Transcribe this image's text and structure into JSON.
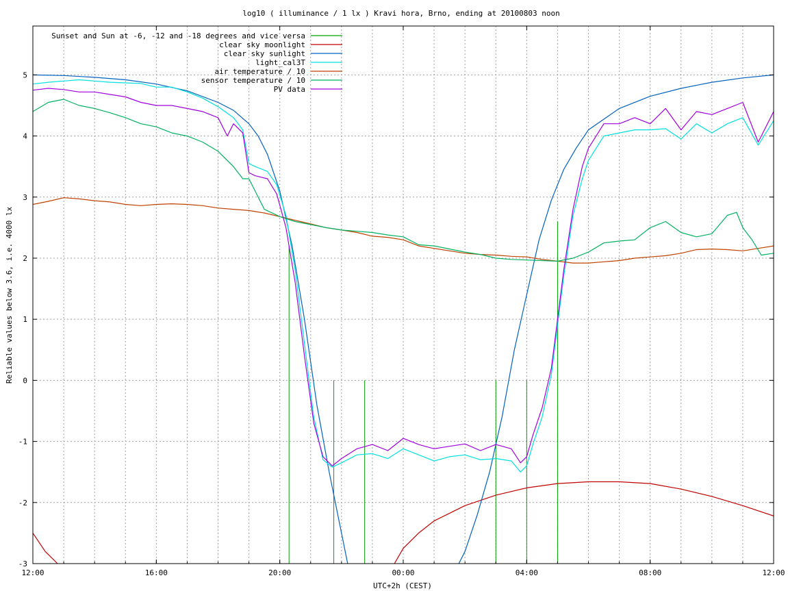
{
  "chart_data": {
    "type": "line",
    "title": "log10 ( illuminance / 1 lx ) Kravi hora, Brno, ending at 20100803 noon",
    "xlabel": "UTC+2h (CEST)",
    "ylabel": "Reliable values below 3.6, i.e. 4000 lx",
    "xlim": [
      0,
      24
    ],
    "ylim": [
      -3,
      5.8
    ],
    "grid": true,
    "legend_position": "top-left",
    "x_ticks": [
      {
        "at": 0,
        "label": "12:00"
      },
      {
        "at": 4,
        "label": "16:00"
      },
      {
        "at": 8,
        "label": "20:00"
      },
      {
        "at": 12,
        "label": "00:00"
      },
      {
        "at": 16,
        "label": "04:00"
      },
      {
        "at": 20,
        "label": "08:00"
      },
      {
        "at": 24,
        "label": "12:00"
      }
    ],
    "x_minor_step": 1,
    "y_ticks": [
      {
        "at": -3,
        "label": "-3"
      },
      {
        "at": -2,
        "label": "-2"
      },
      {
        "at": -1,
        "label": "-1"
      },
      {
        "at": 0,
        "label": "0"
      },
      {
        "at": 1,
        "label": "1"
      },
      {
        "at": 2,
        "label": "2"
      },
      {
        "at": 3,
        "label": "3"
      },
      {
        "at": 4,
        "label": "4"
      },
      {
        "at": 5,
        "label": "5"
      }
    ],
    "series": [
      {
        "name": "Sunset and Sun at -6, -12 and -18 degrees and vice versa",
        "color": "#00a000",
        "kind": "impulses",
        "x": [
          8.3,
          9.75,
          10.75,
          15.0,
          16.0,
          17.0
        ],
        "y": [
          2.2,
          0.0,
          0.0,
          0.0,
          0.0,
          2.6
        ]
      },
      {
        "name": "clear sky moonlight",
        "color": "#c00000",
        "kind": "line",
        "x": [
          0,
          0.4,
          0.8,
          1.2,
          11.6,
          12.0,
          12.5,
          13.0,
          14.0,
          15.0,
          16.0,
          17.0,
          18.0,
          19.0,
          20.0,
          21.0,
          22.0,
          23.0,
          24.0
        ],
        "y": [
          -2.5,
          -2.8,
          -3.0,
          -3.1,
          -3.1,
          -2.75,
          -2.5,
          -2.3,
          -2.05,
          -1.88,
          -1.76,
          -1.69,
          -1.66,
          -1.66,
          -1.69,
          -1.78,
          -1.9,
          -2.05,
          -2.22
        ]
      },
      {
        "name": "clear sky sunlight",
        "color": "#0060c0",
        "kind": "line",
        "x": [
          0,
          1,
          2,
          3,
          4,
          5,
          6,
          6.5,
          7.0,
          7.3,
          7.6,
          8.0,
          8.4,
          8.8,
          9.2,
          9.6,
          10.0,
          10.2,
          10.4,
          13.6,
          13.8,
          14.0,
          14.4,
          14.8,
          15.2,
          15.6,
          16.0,
          16.4,
          16.8,
          17.2,
          17.6,
          18.0,
          19.0,
          20.0,
          21.0,
          22.0,
          23.0,
          24.0
        ],
        "y": [
          5.0,
          4.99,
          4.96,
          4.92,
          4.85,
          4.74,
          4.55,
          4.42,
          4.2,
          4.0,
          3.7,
          3.1,
          2.2,
          1.0,
          -0.4,
          -1.5,
          -2.5,
          -3.0,
          -3.2,
          -3.2,
          -3.0,
          -2.8,
          -2.2,
          -1.5,
          -0.6,
          0.5,
          1.4,
          2.3,
          2.95,
          3.45,
          3.8,
          4.1,
          4.45,
          4.65,
          4.78,
          4.88,
          4.95,
          5.0
        ]
      },
      {
        "name": "light_cal3T",
        "color": "#00e0e0",
        "kind": "line",
        "x": [
          0,
          0.5,
          1,
          1.5,
          2,
          2.5,
          3,
          3.5,
          4,
          4.5,
          5,
          5.5,
          6,
          6.5,
          6.8,
          7.0,
          7.2,
          7.6,
          7.9,
          8.2,
          8.5,
          8.8,
          9.1,
          9.4,
          9.7,
          10.0,
          10.5,
          11,
          11.5,
          12,
          12.5,
          13,
          13.5,
          14,
          14.5,
          15,
          15.5,
          15.8,
          16.0,
          16.2,
          16.5,
          16.8,
          17.0,
          17.2,
          17.5,
          17.8,
          18.0,
          18.5,
          19,
          19.5,
          20,
          20.5,
          21,
          21.5,
          22,
          22.5,
          23,
          23.5,
          24
        ],
        "y": [
          4.85,
          4.88,
          4.9,
          4.92,
          4.9,
          4.88,
          4.87,
          4.86,
          4.8,
          4.8,
          4.72,
          4.62,
          4.48,
          4.3,
          4.1,
          3.55,
          3.5,
          3.42,
          3.2,
          2.7,
          1.8,
          0.6,
          -0.6,
          -1.3,
          -1.42,
          -1.35,
          -1.22,
          -1.2,
          -1.28,
          -1.12,
          -1.22,
          -1.32,
          -1.25,
          -1.22,
          -1.3,
          -1.28,
          -1.32,
          -1.5,
          -1.4,
          -1.05,
          -0.6,
          0.1,
          0.9,
          1.7,
          2.7,
          3.3,
          3.6,
          4.0,
          4.05,
          4.1,
          4.1,
          4.12,
          3.95,
          4.2,
          4.05,
          4.2,
          4.3,
          3.85,
          4.25
        ]
      },
      {
        "name": "air temperature / 10",
        "color": "#c04000",
        "kind": "line",
        "x": [
          0,
          0.5,
          1,
          1.5,
          2,
          2.5,
          3,
          3.5,
          4,
          4.5,
          5,
          5.5,
          6,
          6.5,
          7,
          7.5,
          8,
          8.5,
          9,
          9.5,
          10,
          10.5,
          11,
          11.5,
          12,
          12.5,
          13,
          13.5,
          14,
          14.5,
          15,
          15.5,
          16,
          16.5,
          17,
          17.5,
          18,
          18.5,
          19,
          19.5,
          20,
          20.5,
          21,
          21.5,
          22,
          22.5,
          23,
          23.5,
          24
        ],
        "y": [
          2.88,
          2.93,
          2.99,
          2.97,
          2.94,
          2.92,
          2.88,
          2.86,
          2.88,
          2.89,
          2.88,
          2.86,
          2.82,
          2.8,
          2.78,
          2.74,
          2.68,
          2.62,
          2.56,
          2.5,
          2.46,
          2.42,
          2.36,
          2.34,
          2.3,
          2.2,
          2.16,
          2.12,
          2.08,
          2.06,
          2.05,
          2.03,
          2.02,
          1.98,
          1.95,
          1.92,
          1.92,
          1.94,
          1.96,
          2.0,
          2.02,
          2.04,
          2.08,
          2.14,
          2.15,
          2.14,
          2.12,
          2.16,
          2.2
        ]
      },
      {
        "name": "sensor temperature / 10",
        "color": "#00b060",
        "kind": "line",
        "x": [
          0,
          0.5,
          1,
          1.5,
          2,
          2.5,
          3,
          3.5,
          4,
          4.5,
          5,
          5.5,
          6,
          6.5,
          6.8,
          7.0,
          7.2,
          7.5,
          8,
          8.5,
          9,
          9.5,
          10,
          10.5,
          11,
          11.5,
          12,
          12.5,
          13,
          13.5,
          14,
          14.5,
          15,
          15.5,
          16,
          16.5,
          17,
          17.5,
          18,
          18.5,
          19,
          19.5,
          20,
          20.5,
          21,
          21.5,
          22,
          22.5,
          22.8,
          23,
          23.3,
          23.6,
          24
        ],
        "y": [
          4.4,
          4.55,
          4.6,
          4.5,
          4.45,
          4.38,
          4.3,
          4.2,
          4.15,
          4.05,
          4.0,
          3.9,
          3.75,
          3.5,
          3.3,
          3.3,
          3.1,
          2.8,
          2.68,
          2.6,
          2.55,
          2.5,
          2.46,
          2.44,
          2.42,
          2.38,
          2.35,
          2.22,
          2.2,
          2.15,
          2.1,
          2.06,
          2.0,
          1.98,
          1.97,
          1.96,
          1.95,
          2.0,
          2.1,
          2.25,
          2.28,
          2.3,
          2.5,
          2.6,
          2.42,
          2.35,
          2.4,
          2.7,
          2.75,
          2.5,
          2.3,
          2.05,
          2.08
        ]
      },
      {
        "name": "PV data",
        "color": "#a000e0",
        "kind": "line",
        "x": [
          0,
          0.5,
          1,
          1.5,
          2,
          2.5,
          3,
          3.5,
          4,
          4.5,
          5,
          5.5,
          6,
          6.3,
          6.5,
          6.8,
          7.0,
          7.2,
          7.6,
          7.9,
          8.2,
          8.5,
          8.8,
          9.1,
          9.4,
          9.7,
          10.0,
          10.5,
          11,
          11.5,
          12,
          12.5,
          13,
          13.5,
          14,
          14.5,
          15,
          15.5,
          15.8,
          16.0,
          16.2,
          16.5,
          16.8,
          17.0,
          17.2,
          17.5,
          17.8,
          18.0,
          18.5,
          19,
          19.5,
          20,
          20.5,
          21,
          21.5,
          22,
          22.5,
          23,
          23.5,
          24
        ],
        "y": [
          4.75,
          4.78,
          4.76,
          4.72,
          4.72,
          4.68,
          4.64,
          4.55,
          4.5,
          4.5,
          4.45,
          4.4,
          4.3,
          4.0,
          4.2,
          4.05,
          3.4,
          3.35,
          3.3,
          3.05,
          2.5,
          1.6,
          0.4,
          -0.7,
          -1.25,
          -1.4,
          -1.28,
          -1.12,
          -1.05,
          -1.15,
          -0.95,
          -1.05,
          -1.12,
          -1.08,
          -1.04,
          -1.15,
          -1.05,
          -1.12,
          -1.35,
          -1.25,
          -0.9,
          -0.45,
          0.2,
          1.0,
          1.8,
          2.8,
          3.5,
          3.8,
          4.2,
          4.2,
          4.3,
          4.2,
          4.45,
          4.1,
          4.4,
          4.35,
          4.45,
          4.55,
          3.9,
          4.4
        ]
      }
    ]
  }
}
